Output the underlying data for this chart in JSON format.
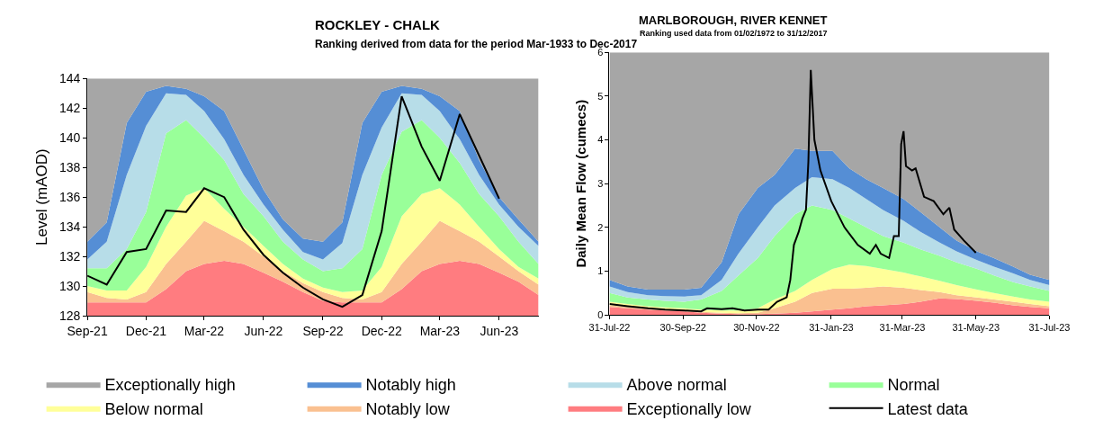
{
  "chart_data": [
    {
      "type": "area",
      "title": "ROCKLEY - CHALK",
      "subtitle": "Ranking derived from data for the period Mar-1933 to Dec-2017",
      "ylabel": "Level (mAOD)",
      "x": [
        "2021-09",
        "2021-10",
        "2021-11",
        "2021-12",
        "2022-01",
        "2022-02",
        "2022-03",
        "2022-04",
        "2022-05",
        "2022-06",
        "2022-07",
        "2022-08",
        "2022-09",
        "2022-10",
        "2022-11",
        "2022-12",
        "2023-01",
        "2023-02",
        "2023-03",
        "2023-04",
        "2023-05",
        "2023-06",
        "2023-07",
        "2023-08"
      ],
      "xlim": [
        "2021-09",
        "2023-08"
      ],
      "xticks": [
        {
          "value": "2021-09",
          "label": "Sep-21"
        },
        {
          "value": "2021-12",
          "label": "Dec-21"
        },
        {
          "value": "2022-03",
          "label": "Mar-22"
        },
        {
          "value": "2022-06",
          "label": "Jun-22"
        },
        {
          "value": "2022-09",
          "label": "Sep-22"
        },
        {
          "value": "2022-12",
          "label": "Dec-22"
        },
        {
          "value": "2023-03",
          "label": "Mar-23"
        },
        {
          "value": "2023-06",
          "label": "Jun-23"
        }
      ],
      "ylim": [
        128,
        144
      ],
      "yticks": [
        128,
        130,
        132,
        134,
        136,
        138,
        140,
        142,
        144
      ],
      "legend": "bottom",
      "series": [
        {
          "name": "Exceptionally high",
          "color": "#a6a6a6",
          "values": [
            144,
            144,
            144,
            144,
            144,
            144,
            144,
            144,
            144,
            144,
            144,
            144,
            144,
            144,
            144,
            144,
            144,
            144,
            144,
            144,
            144,
            144,
            144,
            144
          ]
        },
        {
          "name": "Notably high",
          "color": "#558ed5",
          "values": [
            133.0,
            134.3,
            141.0,
            143.1,
            143.5,
            143.3,
            142.8,
            141.8,
            139.2,
            136.5,
            134.5,
            133.2,
            133.0,
            134.3,
            141.0,
            143.1,
            143.5,
            143.3,
            142.8,
            141.8,
            138.5,
            136.0,
            134.5,
            133.0
          ]
        },
        {
          "name": "Above normal",
          "color": "#b7dde8",
          "values": [
            131.8,
            133.0,
            137.5,
            140.8,
            143.0,
            142.9,
            141.8,
            139.9,
            137.5,
            135.5,
            133.8,
            132.3,
            131.8,
            132.9,
            137.5,
            140.7,
            143.0,
            142.9,
            141.8,
            139.9,
            137.5,
            135.5,
            134.0,
            132.7
          ]
        },
        {
          "name": "Normal",
          "color": "#99ff99",
          "values": [
            131.2,
            131.2,
            132.5,
            135.0,
            140.3,
            141.2,
            140.0,
            138.5,
            136.2,
            134.7,
            133.0,
            131.8,
            131.0,
            131.2,
            132.5,
            137.5,
            140.4,
            141.2,
            140.0,
            138.3,
            136.2,
            134.7,
            133.0,
            131.5
          ]
        },
        {
          "name": "Below normal",
          "color": "#ffff99",
          "values": [
            130.0,
            129.7,
            129.7,
            131.3,
            134.0,
            136.1,
            136.6,
            135.2,
            134.0,
            132.7,
            131.5,
            130.5,
            129.9,
            129.6,
            129.7,
            131.3,
            134.7,
            136.2,
            136.6,
            135.5,
            134.0,
            132.5,
            131.3,
            130.5
          ]
        },
        {
          "name": "Notably low",
          "color": "#fac090",
          "values": [
            129.6,
            129.2,
            129.1,
            129.6,
            131.5,
            133.0,
            134.4,
            133.7,
            133.0,
            132.0,
            131.0,
            130.2,
            129.6,
            129.2,
            129.1,
            129.6,
            131.5,
            133.0,
            134.4,
            133.7,
            133.0,
            132.0,
            131.0,
            130.1
          ]
        },
        {
          "name": "Exceptionally low",
          "color": "#ff7c80",
          "values": [
            128.9,
            128.9,
            128.9,
            128.9,
            129.8,
            131.0,
            131.5,
            131.7,
            131.5,
            130.9,
            130.3,
            129.6,
            129.0,
            128.9,
            128.9,
            128.9,
            129.8,
            131.0,
            131.5,
            131.7,
            131.5,
            130.9,
            130.3,
            129.4
          ]
        },
        {
          "name": "Latest data",
          "type": "line",
          "color": "#000000",
          "values": [
            130.7,
            130.1,
            132.3,
            132.5,
            135.1,
            135.0,
            136.6,
            136.0,
            133.8,
            132.1,
            130.9,
            129.9,
            129.1,
            128.6,
            129.4,
            133.7,
            142.8,
            139.4,
            137.1,
            141.6,
            138.8,
            135.9,
            null,
            null
          ]
        }
      ]
    },
    {
      "type": "area",
      "title": "MARLBOROUGH, RIVER KENNET",
      "subtitle": "Ranking used data from 01/02/1972 to 31/12/2017",
      "ylabel": "Daily Mean Flow (cumecs)",
      "x": [
        "2022-07-31",
        "2022-08-15",
        "2022-09-01",
        "2022-09-15",
        "2022-10-01",
        "2022-10-15",
        "2022-11-01",
        "2022-11-15",
        "2022-12-01",
        "2022-12-15",
        "2023-01-01",
        "2023-01-15",
        "2023-02-01",
        "2023-02-15",
        "2023-03-01",
        "2023-03-15",
        "2023-04-01",
        "2023-04-15",
        "2023-05-01",
        "2023-05-15",
        "2023-06-01",
        "2023-06-15",
        "2023-07-01",
        "2023-07-15",
        "2023-07-31"
      ],
      "xlim": [
        "2022-07-31",
        "2023-07-31"
      ],
      "xticks": [
        {
          "value": "2022-07-31",
          "label": "31-Jul-22"
        },
        {
          "value": "2022-09-30",
          "label": "30-Sep-22"
        },
        {
          "value": "2022-11-30",
          "label": "30-Nov-22"
        },
        {
          "value": "2023-01-31",
          "label": "31-Jan-23"
        },
        {
          "value": "2023-03-31",
          "label": "31-Mar-23"
        },
        {
          "value": "2023-05-31",
          "label": "31-May-23"
        },
        {
          "value": "2023-07-31",
          "label": "31-Jul-23"
        }
      ],
      "ylim": [
        0,
        6
      ],
      "yticks": [
        0,
        1,
        2,
        3,
        4,
        5,
        6
      ],
      "series": [
        {
          "color": "#a6a6a6",
          "values": [
            6,
            6,
            6,
            6,
            6,
            6,
            6,
            6,
            6,
            6,
            6,
            6,
            6,
            6,
            6,
            6,
            6,
            6,
            6,
            6,
            6,
            6,
            6,
            6,
            6
          ]
        },
        {
          "color": "#558ed5",
          "values": [
            0.8,
            0.65,
            0.58,
            0.58,
            0.58,
            0.62,
            1.2,
            2.3,
            2.9,
            3.2,
            3.8,
            3.75,
            3.75,
            3.35,
            3.1,
            2.9,
            2.65,
            2.35,
            2.0,
            1.7,
            1.45,
            1.3,
            1.1,
            0.92,
            0.8
          ]
        },
        {
          "color": "#b7dde8",
          "values": [
            0.65,
            0.52,
            0.45,
            0.43,
            0.42,
            0.45,
            0.8,
            1.4,
            2.0,
            2.5,
            2.9,
            3.15,
            3.1,
            2.9,
            2.65,
            2.4,
            2.15,
            1.9,
            1.65,
            1.45,
            1.25,
            1.1,
            0.95,
            0.8,
            0.68
          ]
        },
        {
          "color": "#99ff99",
          "values": [
            0.5,
            0.4,
            0.35,
            0.32,
            0.3,
            0.35,
            0.55,
            0.9,
            1.3,
            1.8,
            2.3,
            2.5,
            2.4,
            2.2,
            2.0,
            1.8,
            1.65,
            1.5,
            1.35,
            1.2,
            1.05,
            0.9,
            0.75,
            0.65,
            0.55
          ]
        },
        {
          "color": "#ffff99",
          "values": [
            0.3,
            0.25,
            0.2,
            0.17,
            0.15,
            0.12,
            0.1,
            0.1,
            0.15,
            0.35,
            0.55,
            0.8,
            1.05,
            1.15,
            1.12,
            1.05,
            0.97,
            0.88,
            0.78,
            0.68,
            0.58,
            0.5,
            0.42,
            0.35,
            0.3
          ]
        },
        {
          "color": "#fac090",
          "values": [
            0.22,
            0.19,
            0.15,
            0.12,
            0.1,
            0.07,
            0.05,
            0.04,
            0.05,
            0.15,
            0.3,
            0.5,
            0.6,
            0.6,
            0.62,
            0.65,
            0.62,
            0.57,
            0.52,
            0.45,
            0.4,
            0.35,
            0.3,
            0.25,
            0.2
          ]
        },
        {
          "color": "#ff7c80",
          "values": [
            0.18,
            0.15,
            0.12,
            0.1,
            0.08,
            0.05,
            0.03,
            0.02,
            0.02,
            0.03,
            0.05,
            0.08,
            0.12,
            0.15,
            0.2,
            0.22,
            0.25,
            0.3,
            0.38,
            0.36,
            0.32,
            0.28,
            0.22,
            0.18,
            0.15
          ]
        },
        {
          "type": "line",
          "color": "#000000",
          "x": [
            "2022-07-31",
            "2022-08-15",
            "2022-09-01",
            "2022-09-15",
            "2022-10-01",
            "2022-10-15",
            "2022-10-20",
            "2022-11-01",
            "2022-11-10",
            "2022-11-20",
            "2022-12-01",
            "2022-12-10",
            "2022-12-17",
            "2022-12-25",
            "2022-12-28",
            "2022-12-31",
            "2023-01-04",
            "2023-01-07",
            "2023-01-10",
            "2023-01-12",
            "2023-01-14",
            "2023-01-17",
            "2023-01-22",
            "2023-01-31",
            "2023-02-11",
            "2023-02-22",
            "2023-03-04",
            "2023-03-09",
            "2023-03-13",
            "2023-03-20",
            "2023-03-24",
            "2023-03-28",
            "2023-03-30",
            "2023-04-01",
            "2023-04-03",
            "2023-04-08",
            "2023-04-11",
            "2023-04-18",
            "2023-04-26",
            "2023-05-04",
            "2023-05-09",
            "2023-05-13",
            "2023-05-21",
            "2023-05-31"
          ],
          "values": [
            0.25,
            0.2,
            0.15,
            0.12,
            0.1,
            0.08,
            0.15,
            0.13,
            0.15,
            0.1,
            0.12,
            0.12,
            0.3,
            0.4,
            0.8,
            1.6,
            1.9,
            2.2,
            2.4,
            3.5,
            5.6,
            4.0,
            3.3,
            2.6,
            2.0,
            1.6,
            1.4,
            1.6,
            1.4,
            1.3,
            1.8,
            1.8,
            3.9,
            4.2,
            3.4,
            3.3,
            3.35,
            2.7,
            2.6,
            2.3,
            2.45,
            1.95,
            1.7,
            1.42
          ]
        }
      ]
    }
  ]
}
